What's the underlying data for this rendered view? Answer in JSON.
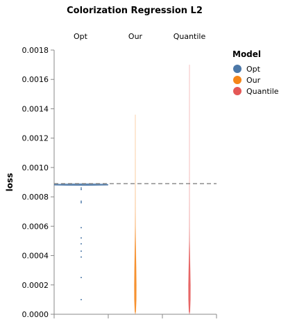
{
  "chart_data": {
    "type": "violin",
    "title": "Colorization Regression L2",
    "ylabel": "loss",
    "ylim": [
      0,
      0.0018
    ],
    "yticks": [
      "0.0000",
      "0.0002",
      "0.0004",
      "0.0006",
      "0.0008",
      "0.0010",
      "0.0012",
      "0.0014",
      "0.0016",
      "0.0018"
    ],
    "columns": [
      "Opt",
      "Our",
      "Quantile"
    ],
    "reference_line": 0.00089,
    "legend": {
      "title": "Model",
      "position": "right",
      "items": [
        {
          "label": "Opt",
          "color": "#4c78a8"
        },
        {
          "label": "Our",
          "color": "#f58518"
        },
        {
          "label": "Quantile",
          "color": "#e45756"
        }
      ]
    },
    "series": [
      {
        "name": "Opt",
        "color": "#4c78a8",
        "max": 0.00089,
        "main_band": [
          0.00088,
          0.00089
        ],
        "points": [
          0.00086,
          0.00085,
          0.00077,
          0.00076,
          0.00059,
          0.00052,
          0.00048,
          0.00043,
          0.00039,
          0.00025,
          0.0001
        ]
      },
      {
        "name": "Our",
        "color": "#f58518",
        "profile": [
          [
            0.0,
            0.0
          ],
          [
            2e-05,
            0.5
          ],
          [
            0.0001,
            0.95
          ],
          [
            0.0002,
            1.0
          ],
          [
            0.0003,
            0.85
          ],
          [
            0.0004,
            0.6
          ],
          [
            0.0005,
            0.35
          ],
          [
            0.0006,
            0.18
          ],
          [
            0.0007,
            0.08
          ],
          [
            0.0009,
            0.03
          ],
          [
            0.0011,
            0.012
          ],
          [
            0.00136,
            0.0
          ]
        ]
      },
      {
        "name": "Quantile",
        "color": "#e45756",
        "profile": [
          [
            0.0,
            0.0
          ],
          [
            2e-05,
            0.55
          ],
          [
            0.0001,
            0.95
          ],
          [
            0.0002,
            1.0
          ],
          [
            0.0003,
            0.75
          ],
          [
            0.0004,
            0.45
          ],
          [
            0.0005,
            0.22
          ],
          [
            0.0006,
            0.1
          ],
          [
            0.0008,
            0.04
          ],
          [
            0.001,
            0.015
          ],
          [
            0.0013,
            0.006
          ],
          [
            0.0017,
            0.0
          ]
        ]
      }
    ]
  }
}
